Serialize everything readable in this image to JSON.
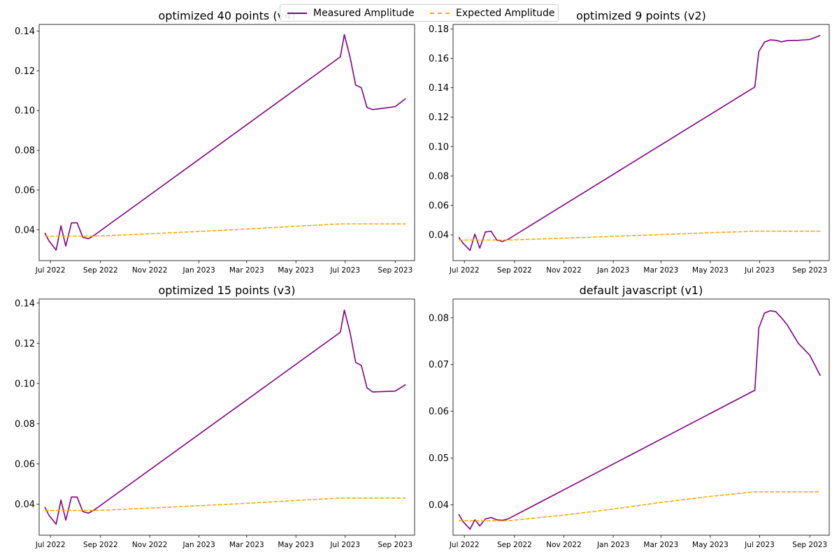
{
  "legend": {
    "measured_label": "Measured Amplitude",
    "expected_label": "Expected Amplitude"
  },
  "colors": {
    "measured": "#800080",
    "expected": "#FFA500"
  },
  "chart_data": [
    {
      "type": "line",
      "title": "optimized 40 points (v4)",
      "xlabel": "",
      "ylabel": "",
      "x_ticks": [
        "Jul 2022",
        "Sep 2022",
        "Nov 2022",
        "Jan 2023",
        "Mar 2023",
        "May 2023",
        "Jul 2023",
        "Sep 2023"
      ],
      "y_ticks": [
        "0.04",
        "0.06",
        "0.08",
        "0.10",
        "0.12",
        "0.14"
      ],
      "ylim": [
        0.0245,
        0.1433
      ],
      "xlim": [
        "2022-06-17",
        "2023-09-25"
      ],
      "grid": false,
      "legend_position": "top-center",
      "series": [
        {
          "name": "Measured Amplitude",
          "style": "solid",
          "x": [
            "2022-06-24",
            "2022-06-29",
            "2022-07-08",
            "2022-07-14",
            "2022-07-20",
            "2022-07-27",
            "2022-08-03",
            "2022-08-10",
            "2022-08-17",
            "2022-08-24",
            "2023-06-25",
            "2023-06-30",
            "2023-07-07",
            "2023-07-14",
            "2023-07-21",
            "2023-07-28",
            "2023-08-04",
            "2023-08-18",
            "2023-09-01",
            "2023-09-14"
          ],
          "y": [
            0.0385,
            0.0345,
            0.0298,
            0.042,
            0.0318,
            0.0435,
            0.0435,
            0.0363,
            0.0355,
            0.0372,
            0.127,
            0.1382,
            0.127,
            0.1128,
            0.1115,
            0.1015,
            0.1005,
            0.1012,
            0.102,
            0.106
          ]
        },
        {
          "name": "Expected Amplitude",
          "style": "dashed",
          "x": [
            "2022-06-24",
            "2022-08-24",
            "2022-11-01",
            "2023-01-01",
            "2023-03-01",
            "2023-05-01",
            "2023-06-25",
            "2023-09-14"
          ],
          "y": [
            0.0368,
            0.0368,
            0.038,
            0.0392,
            0.0404,
            0.0418,
            0.043,
            0.043
          ]
        }
      ]
    },
    {
      "type": "line",
      "title": "optimized 9 points (v2)",
      "xlabel": "",
      "ylabel": "",
      "x_ticks": [
        "Jul 2022",
        "Sep 2022",
        "Nov 2022",
        "Jan 2023",
        "Mar 2023",
        "May 2023",
        "Jul 2023",
        "Sep 2023"
      ],
      "y_ticks": [
        "0.04",
        "0.06",
        "0.08",
        "0.10",
        "0.12",
        "0.14",
        "0.16",
        "0.18"
      ],
      "ylim": [
        0.0225,
        0.183
      ],
      "xlim": [
        "2022-06-17",
        "2023-09-25"
      ],
      "grid": false,
      "series": [
        {
          "name": "Measured Amplitude",
          "style": "solid",
          "x": [
            "2022-06-24",
            "2022-06-29",
            "2022-07-08",
            "2022-07-14",
            "2022-07-20",
            "2022-07-27",
            "2022-08-03",
            "2022-08-10",
            "2022-08-17",
            "2022-08-24",
            "2023-06-25",
            "2023-06-30",
            "2023-07-07",
            "2023-07-14",
            "2023-07-21",
            "2023-07-28",
            "2023-08-04",
            "2023-08-18",
            "2023-09-01",
            "2023-09-14"
          ],
          "y": [
            0.0385,
            0.0345,
            0.0295,
            0.0405,
            0.031,
            0.042,
            0.0425,
            0.0365,
            0.0355,
            0.037,
            0.1405,
            0.1645,
            0.171,
            0.1725,
            0.1722,
            0.1712,
            0.172,
            0.1722,
            0.1728,
            0.1755
          ]
        },
        {
          "name": "Expected Amplitude",
          "style": "dashed",
          "x": [
            "2022-06-24",
            "2022-08-24",
            "2022-11-01",
            "2023-01-01",
            "2023-03-01",
            "2023-05-01",
            "2023-06-25",
            "2023-09-14"
          ],
          "y": [
            0.0365,
            0.0365,
            0.0378,
            0.039,
            0.0402,
            0.0415,
            0.0425,
            0.0425
          ]
        }
      ]
    },
    {
      "type": "line",
      "title": "optimized 15 points (v3)",
      "xlabel": "",
      "ylabel": "",
      "x_ticks": [
        "Jul 2022",
        "Sep 2022",
        "Nov 2022",
        "Jan 2023",
        "Mar 2023",
        "May 2023",
        "Jul 2023",
        "Sep 2023"
      ],
      "y_ticks": [
        "0.04",
        "0.06",
        "0.08",
        "0.10",
        "0.12",
        "0.14"
      ],
      "ylim": [
        0.0245,
        0.142
      ],
      "xlim": [
        "2022-06-17",
        "2023-09-25"
      ],
      "grid": false,
      "series": [
        {
          "name": "Measured Amplitude",
          "style": "solid",
          "x": [
            "2022-06-24",
            "2022-06-29",
            "2022-07-08",
            "2022-07-14",
            "2022-07-20",
            "2022-07-27",
            "2022-08-03",
            "2022-08-10",
            "2022-08-17",
            "2022-08-24",
            "2023-06-25",
            "2023-06-30",
            "2023-07-07",
            "2023-07-14",
            "2023-07-21",
            "2023-07-28",
            "2023-08-04",
            "2023-08-18",
            "2023-09-01",
            "2023-09-14"
          ],
          "y": [
            0.0385,
            0.0345,
            0.03,
            0.042,
            0.032,
            0.0435,
            0.0435,
            0.0363,
            0.0355,
            0.037,
            0.1255,
            0.1365,
            0.1255,
            0.1105,
            0.109,
            0.0978,
            0.0958,
            0.096,
            0.0962,
            0.0995
          ]
        },
        {
          "name": "Expected Amplitude",
          "style": "dashed",
          "x": [
            "2022-06-24",
            "2022-08-24",
            "2022-11-01",
            "2023-01-01",
            "2023-03-01",
            "2023-05-01",
            "2023-06-25",
            "2023-09-14"
          ],
          "y": [
            0.0368,
            0.0368,
            0.038,
            0.0392,
            0.0404,
            0.0418,
            0.043,
            0.043
          ]
        }
      ]
    },
    {
      "type": "line",
      "title": "default javascript (v1)",
      "xlabel": "",
      "ylabel": "",
      "x_ticks": [
        "Jul 2022",
        "Sep 2022",
        "Nov 2022",
        "Jan 2023",
        "Mar 2023",
        "May 2023",
        "Jul 2023",
        "Sep 2023"
      ],
      "y_ticks": [
        "0.04",
        "0.05",
        "0.06",
        "0.07",
        "0.08"
      ],
      "ylim": [
        0.0335,
        0.084
      ],
      "xlim": [
        "2022-06-17",
        "2023-09-25"
      ],
      "grid": false,
      "series": [
        {
          "name": "Measured Amplitude",
          "style": "solid",
          "x": [
            "2022-06-24",
            "2022-06-29",
            "2022-07-08",
            "2022-07-14",
            "2022-07-20",
            "2022-07-27",
            "2022-08-03",
            "2022-08-10",
            "2022-08-17",
            "2022-08-24",
            "2023-06-25",
            "2023-06-30",
            "2023-07-07",
            "2023-07-14",
            "2023-07-21",
            "2023-07-28",
            "2023-08-04",
            "2023-08-18",
            "2023-09-01",
            "2023-09-14"
          ],
          "y": [
            0.038,
            0.0365,
            0.0348,
            0.0368,
            0.0355,
            0.037,
            0.0373,
            0.0368,
            0.0367,
            0.037,
            0.0645,
            0.0778,
            0.081,
            0.0815,
            0.0813,
            0.08,
            0.0785,
            0.0745,
            0.072,
            0.0676
          ]
        },
        {
          "name": "Expected Amplitude",
          "style": "dashed",
          "x": [
            "2022-06-24",
            "2022-08-24",
            "2022-11-01",
            "2023-01-01",
            "2023-03-01",
            "2023-05-01",
            "2023-06-25",
            "2023-09-14"
          ],
          "y": [
            0.0366,
            0.0366,
            0.0378,
            0.0391,
            0.0405,
            0.0418,
            0.0428,
            0.0428
          ]
        }
      ]
    }
  ]
}
